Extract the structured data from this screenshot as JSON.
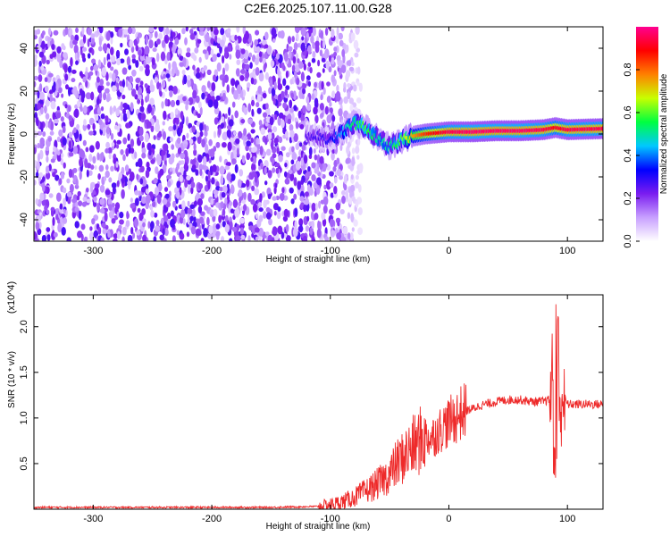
{
  "figure_title": "C2E6.2025.107.11.00.G28",
  "chart_data": [
    {
      "type": "heatmap",
      "title": "C2E6.2025.107.11.00.G28",
      "xlabel": "Height of straight line (km)",
      "ylabel": "Frequency (Hz)",
      "xlim": [
        -350,
        130
      ],
      "ylim": [
        -50,
        50
      ],
      "xticks": [
        -300,
        -200,
        -100,
        0,
        100
      ],
      "yticks": [
        -40,
        -20,
        0,
        20,
        40
      ],
      "colorbar": {
        "label": "Normalized spectral amplitude",
        "range": [
          0,
          1
        ],
        "ticks": [
          "0.0",
          "0.2",
          "0.4",
          "0.6",
          "0.8"
        ],
        "colors": [
          "#ffffff",
          "#c8a0ff",
          "#7a1cf0",
          "#0000ff",
          "#00c8ff",
          "#00ff40",
          "#c8ff00",
          "#ff8000",
          "#ff0000",
          "#ff0090"
        ]
      },
      "ridge": {
        "x": [
          -120,
          -100,
          -80,
          -70,
          -60,
          -50,
          -40,
          -30,
          -20,
          0,
          20,
          40,
          60,
          80,
          90,
          100,
          130
        ],
        "y": [
          0,
          -3,
          5,
          3,
          -2,
          -6,
          -3,
          -1,
          0,
          1,
          1,
          1.5,
          1.5,
          2,
          3,
          2,
          2.5
        ],
        "peak_amplitude": [
          0.25,
          0.3,
          0.55,
          0.6,
          0.5,
          0.5,
          0.6,
          0.75,
          0.85,
          0.95,
          0.97,
          0.97,
          0.97,
          0.95,
          0.9,
          0.95,
          0.95
        ]
      },
      "noise_region_x": [
        -350,
        -100
      ]
    },
    {
      "type": "line",
      "title": "",
      "xlabel": "Height of straight line (km)",
      "ylabel": "SNR (10 * v/v)",
      "y_multiplier": "(x10^4)",
      "xlim": [
        -350,
        130
      ],
      "ylim": [
        0,
        2.35
      ],
      "xticks": [
        -300,
        -200,
        -100,
        0,
        100
      ],
      "yticks": [
        "0.5",
        "1.0",
        "1.5",
        "2.0"
      ],
      "series": [
        {
          "color": "#ee2a2a",
          "x": [
            -350,
            -300,
            -250,
            -200,
            -150,
            -110,
            -100,
            -90,
            -80,
            -70,
            -60,
            -50,
            -45,
            -40,
            -35,
            -30,
            -25,
            -20,
            -15,
            -10,
            -5,
            0,
            5,
            10,
            15,
            20,
            25,
            30,
            35,
            40,
            50,
            60,
            70,
            80,
            85,
            88,
            90,
            92,
            95,
            100,
            110,
            120,
            130
          ],
          "y": [
            0.02,
            0.02,
            0.02,
            0.02,
            0.02,
            0.03,
            0.05,
            0.08,
            0.13,
            0.2,
            0.28,
            0.38,
            0.48,
            0.55,
            0.62,
            0.68,
            0.74,
            0.8,
            0.78,
            0.84,
            0.9,
            0.95,
            1.0,
            1.05,
            1.08,
            1.1,
            1.13,
            1.15,
            1.16,
            1.18,
            1.2,
            1.2,
            1.18,
            1.18,
            1.2,
            1.5,
            2.3,
            0.6,
            1.3,
            1.15,
            1.15,
            1.15,
            1.15
          ]
        }
      ]
    }
  ]
}
